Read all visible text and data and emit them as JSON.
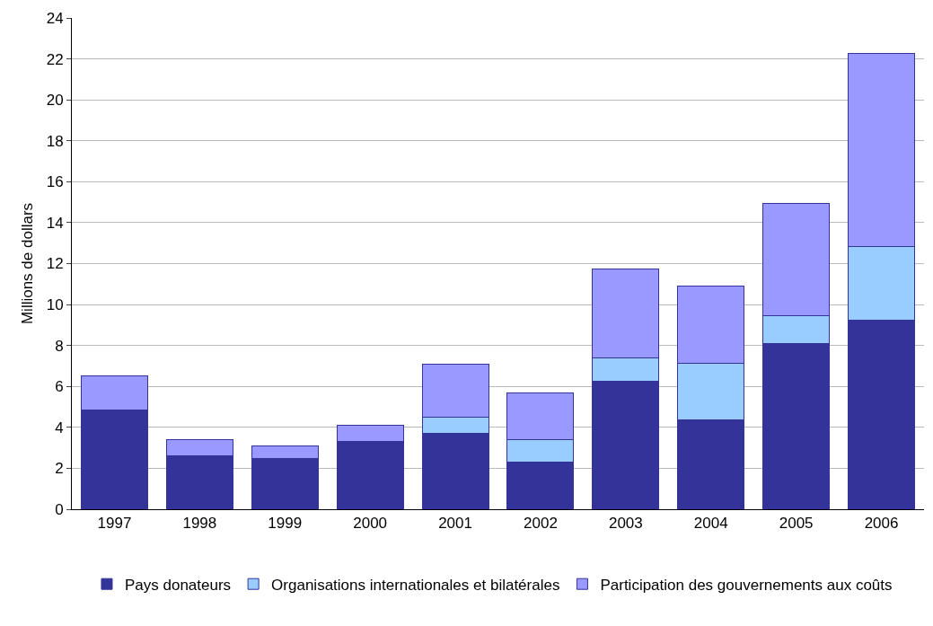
{
  "chart_data": {
    "type": "bar",
    "stacked": true,
    "ylabel": "Millions de dollars",
    "categories": [
      "1997",
      "1998",
      "1999",
      "2000",
      "2001",
      "2002",
      "2003",
      "2004",
      "2005",
      "2006"
    ],
    "series": [
      {
        "name": "Pays donateurs",
        "color": "#333399",
        "values": [
          4.85,
          2.6,
          2.5,
          3.3,
          3.7,
          2.3,
          6.25,
          4.35,
          8.1,
          9.25
        ]
      },
      {
        "name": "Organisations internationales et bilatérales",
        "color": "#99ccff",
        "values": [
          0,
          0,
          0,
          0,
          0.8,
          1.1,
          1.15,
          2.8,
          1.35,
          3.6
        ]
      },
      {
        "name": "Participation des gouvernements aux coûts",
        "color": "#9999ff",
        "values": [
          1.65,
          0.8,
          0.6,
          0.8,
          2.6,
          2.3,
          4.35,
          3.75,
          5.5,
          9.4
        ]
      }
    ],
    "ylim": [
      0,
      24
    ],
    "yticks": [
      0,
      2,
      4,
      6,
      8,
      10,
      12,
      14,
      16,
      18,
      20,
      22,
      24
    ],
    "grid": "y",
    "legend": "bottom"
  }
}
